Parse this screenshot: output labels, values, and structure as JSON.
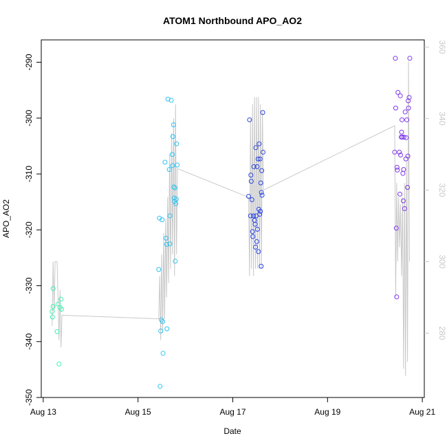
{
  "chart_data": {
    "type": "scatter",
    "title": "ATOM1 Northbound APO_AO2",
    "xlabel": "Date",
    "ylabel": "APO_AO2",
    "x_ticks": [
      "Aug 13",
      "Aug 15",
      "Aug 17",
      "Aug 19",
      "Aug 21"
    ],
    "xlim": [
      "2024-08-12T23:00",
      "2024-08-21T01:00"
    ],
    "ylim": [
      -350,
      -286
    ],
    "y_ticks": [
      -350,
      -340,
      -330,
      -320,
      -310,
      -300,
      -290
    ],
    "y2lim": [
      262,
      362
    ],
    "y2_ticks": [
      280,
      300,
      320,
      340,
      360
    ],
    "grid": false,
    "series": [
      {
        "color": "#3ef0b0",
        "points": [
          {
            "x": "2024-08-13T04:30",
            "y": -334.6
          },
          {
            "x": "2024-08-13T04:40",
            "y": -335.6
          },
          {
            "x": "2024-08-13T05:00",
            "y": -330.5
          },
          {
            "x": "2024-08-13T05:00",
            "y": -333.7
          },
          {
            "x": "2024-08-13T07:00",
            "y": -338.2
          },
          {
            "x": "2024-08-13T07:30",
            "y": -333.3
          },
          {
            "x": "2024-08-13T08:00",
            "y": -344.0
          },
          {
            "x": "2024-08-13T08:30",
            "y": -333.9
          },
          {
            "x": "2024-08-13T09:00",
            "y": -332.4
          },
          {
            "x": "2024-08-13T09:15",
            "y": -334.2
          }
        ]
      },
      {
        "color": "#2ec3f0",
        "points": [
          {
            "x": "2024-08-15T10:30",
            "y": -327.1
          },
          {
            "x": "2024-08-15T10:50",
            "y": -317.9
          },
          {
            "x": "2024-08-15T11:10",
            "y": -348.0
          },
          {
            "x": "2024-08-15T11:30",
            "y": -338.1
          },
          {
            "x": "2024-08-15T11:50",
            "y": -336.1
          },
          {
            "x": "2024-08-15T12:10",
            "y": -318.2
          },
          {
            "x": "2024-08-15T12:30",
            "y": -336.4
          },
          {
            "x": "2024-08-15T12:40",
            "y": -342.1
          },
          {
            "x": "2024-08-15T13:40",
            "y": -307.9
          },
          {
            "x": "2024-08-15T14:10",
            "y": -321.5
          },
          {
            "x": "2024-08-15T14:30",
            "y": -322.6
          },
          {
            "x": "2024-08-15T14:40",
            "y": -337.7
          },
          {
            "x": "2024-08-15T15:10",
            "y": -296.6
          },
          {
            "x": "2024-08-15T15:50",
            "y": -309.2
          },
          {
            "x": "2024-08-15T16:10",
            "y": -322.5
          },
          {
            "x": "2024-08-15T16:10",
            "y": -317.5
          },
          {
            "x": "2024-08-15T16:50",
            "y": -296.8
          },
          {
            "x": "2024-08-15T17:20",
            "y": -306.5
          },
          {
            "x": "2024-08-15T17:30",
            "y": -308.5
          },
          {
            "x": "2024-08-15T17:40",
            "y": -303.3
          },
          {
            "x": "2024-08-15T18:00",
            "y": -301.2
          },
          {
            "x": "2024-08-15T18:10",
            "y": -312.3
          },
          {
            "x": "2024-08-15T18:20",
            "y": -314.3
          },
          {
            "x": "2024-08-15T18:30",
            "y": -314.9
          },
          {
            "x": "2024-08-15T18:40",
            "y": -312.5
          },
          {
            "x": "2024-08-15T18:50",
            "y": -325.6
          },
          {
            "x": "2024-08-15T19:10",
            "y": -315.3
          },
          {
            "x": "2024-08-15T19:20",
            "y": -314.5
          },
          {
            "x": "2024-08-15T19:30",
            "y": -304.6
          },
          {
            "x": "2024-08-15T19:50",
            "y": -308.4
          }
        ]
      },
      {
        "color": "#2b46e0",
        "points": [
          {
            "x": "2024-08-17T08:00",
            "y": -314.0
          },
          {
            "x": "2024-08-17T08:30",
            "y": -300.3
          },
          {
            "x": "2024-08-17T09:00",
            "y": -317.5
          },
          {
            "x": "2024-08-17T09:10",
            "y": -310.2
          },
          {
            "x": "2024-08-17T09:20",
            "y": -311.3
          },
          {
            "x": "2024-08-17T09:40",
            "y": -314.6
          },
          {
            "x": "2024-08-17T10:00",
            "y": -320.3
          },
          {
            "x": "2024-08-17T10:10",
            "y": -321.2
          },
          {
            "x": "2024-08-17T10:30",
            "y": -317.5
          },
          {
            "x": "2024-08-17T10:40",
            "y": -308.7
          },
          {
            "x": "2024-08-17T11:00",
            "y": -318.3
          },
          {
            "x": "2024-08-17T11:20",
            "y": -319.0
          },
          {
            "x": "2024-08-17T11:30",
            "y": -323.1
          },
          {
            "x": "2024-08-17T11:40",
            "y": -305.3
          },
          {
            "x": "2024-08-17T11:50",
            "y": -317.5
          },
          {
            "x": "2024-08-17T12:10",
            "y": -322.1
          },
          {
            "x": "2024-08-17T12:20",
            "y": -308.7
          },
          {
            "x": "2024-08-17T12:30",
            "y": -319.9
          },
          {
            "x": "2024-08-17T12:50",
            "y": -307.3
          },
          {
            "x": "2024-08-17T13:00",
            "y": -323.9
          },
          {
            "x": "2024-08-17T13:10",
            "y": -316.3
          },
          {
            "x": "2024-08-17T13:20",
            "y": -304.6
          },
          {
            "x": "2024-08-17T13:40",
            "y": -317.2
          },
          {
            "x": "2024-08-17T13:50",
            "y": -307.3
          },
          {
            "x": "2024-08-17T14:00",
            "y": -316.7
          },
          {
            "x": "2024-08-17T14:10",
            "y": -311.6
          },
          {
            "x": "2024-08-17T14:20",
            "y": -326.5
          },
          {
            "x": "2024-08-17T14:30",
            "y": -313.3
          },
          {
            "x": "2024-08-17T14:40",
            "y": -309.4
          },
          {
            "x": "2024-08-17T14:50",
            "y": -313.8
          },
          {
            "x": "2024-08-17T15:10",
            "y": -299.0
          },
          {
            "x": "2024-08-17T15:20",
            "y": -306.1
          }
        ]
      },
      {
        "color": "#7c35e8",
        "points": [
          {
            "x": "2024-08-20T10:00",
            "y": -306.1
          },
          {
            "x": "2024-08-20T10:20",
            "y": -289.3
          },
          {
            "x": "2024-08-20T10:30",
            "y": -298.2
          },
          {
            "x": "2024-08-20T10:50",
            "y": -319.7
          },
          {
            "x": "2024-08-20T11:00",
            "y": -332.0
          },
          {
            "x": "2024-08-20T11:10",
            "y": -308.8
          },
          {
            "x": "2024-08-20T11:20",
            "y": -309.3
          },
          {
            "x": "2024-08-20T11:40",
            "y": -295.4
          },
          {
            "x": "2024-08-20T12:20",
            "y": -306.1
          },
          {
            "x": "2024-08-20T12:40",
            "y": -313.6
          },
          {
            "x": "2024-08-20T12:50",
            "y": -296.0
          },
          {
            "x": "2024-08-20T13:00",
            "y": -306.6
          },
          {
            "x": "2024-08-20T13:20",
            "y": -303.4
          },
          {
            "x": "2024-08-20T13:30",
            "y": -302.5
          },
          {
            "x": "2024-08-20T13:40",
            "y": -300.3
          },
          {
            "x": "2024-08-20T13:50",
            "y": -303.4
          },
          {
            "x": "2024-08-20T14:10",
            "y": -309.9
          },
          {
            "x": "2024-08-20T14:20",
            "y": -314.8
          },
          {
            "x": "2024-08-20T14:30",
            "y": -309.2
          },
          {
            "x": "2024-08-20T14:40",
            "y": -303.4
          },
          {
            "x": "2024-08-20T15:00",
            "y": -316.2
          },
          {
            "x": "2024-08-20T15:20",
            "y": -298.9
          },
          {
            "x": "2024-08-20T15:40",
            "y": -307.3
          },
          {
            "x": "2024-08-20T15:50",
            "y": -303.5
          },
          {
            "x": "2024-08-20T16:10",
            "y": -300.3
          },
          {
            "x": "2024-08-20T16:30",
            "y": -312.4
          },
          {
            "x": "2024-08-20T16:40",
            "y": -306.8
          },
          {
            "x": "2024-08-20T16:50",
            "y": -296.9
          },
          {
            "x": "2024-08-20T17:00",
            "y": -298.2
          },
          {
            "x": "2024-08-20T17:20",
            "y": -296.3
          },
          {
            "x": "2024-08-20T17:40",
            "y": -289.3
          }
        ]
      }
    ],
    "secondary_line": {
      "color": "#c8c8c8",
      "points": [
        {
          "x": "2024-08-13T04:30",
          "y2": 282
        },
        {
          "x": "2024-08-13T05:00",
          "y2": 300
        },
        {
          "x": "2024-08-13T05:30",
          "y2": 286
        },
        {
          "x": "2024-08-13T06:00",
          "y2": 300
        },
        {
          "x": "2024-08-13T07:00",
          "y2": 300
        },
        {
          "x": "2024-08-13T07:30",
          "y2": 290
        },
        {
          "x": "2024-08-13T08:00",
          "y2": 278
        },
        {
          "x": "2024-08-13T08:30",
          "y2": 292
        },
        {
          "x": "2024-08-13T09:00",
          "y2": 276
        },
        {
          "x": "2024-08-13T09:30",
          "y2": 285
        },
        {
          "x": "2024-08-15T10:30",
          "y2": 284
        },
        {
          "x": "2024-08-15T11:00",
          "y2": 296
        },
        {
          "x": "2024-08-15T11:30",
          "y2": 278
        },
        {
          "x": "2024-08-15T12:00",
          "y2": 302
        },
        {
          "x": "2024-08-15T12:30",
          "y2": 280
        },
        {
          "x": "2024-08-15T13:00",
          "y2": 308
        },
        {
          "x": "2024-08-15T13:30",
          "y2": 284
        },
        {
          "x": "2024-08-15T14:00",
          "y2": 312
        },
        {
          "x": "2024-08-15T14:30",
          "y2": 290
        },
        {
          "x": "2024-08-15T15:00",
          "y2": 318
        },
        {
          "x": "2024-08-15T15:30",
          "y2": 294
        },
        {
          "x": "2024-08-15T16:00",
          "y2": 330
        },
        {
          "x": "2024-08-15T16:30",
          "y2": 298
        },
        {
          "x": "2024-08-15T17:00",
          "y2": 336
        },
        {
          "x": "2024-08-15T17:30",
          "y2": 302
        },
        {
          "x": "2024-08-15T18:00",
          "y2": 340
        },
        {
          "x": "2024-08-15T18:30",
          "y2": 296
        },
        {
          "x": "2024-08-15T19:00",
          "y2": 344
        },
        {
          "x": "2024-08-15T19:30",
          "y2": 302
        },
        {
          "x": "2024-08-15T20:00",
          "y2": 326
        },
        {
          "x": "2024-08-17T08:00",
          "y2": 318
        },
        {
          "x": "2024-08-17T08:30",
          "y2": 296
        },
        {
          "x": "2024-08-17T09:00",
          "y2": 340
        },
        {
          "x": "2024-08-17T09:30",
          "y2": 298
        },
        {
          "x": "2024-08-17T10:00",
          "y2": 344
        },
        {
          "x": "2024-08-17T10:30",
          "y2": 296
        },
        {
          "x": "2024-08-17T11:00",
          "y2": 346
        },
        {
          "x": "2024-08-17T11:30",
          "y2": 298
        },
        {
          "x": "2024-08-17T12:00",
          "y2": 346
        },
        {
          "x": "2024-08-17T12:30",
          "y2": 298
        },
        {
          "x": "2024-08-17T13:00",
          "y2": 346
        },
        {
          "x": "2024-08-17T13:30",
          "y2": 298
        },
        {
          "x": "2024-08-17T14:00",
          "y2": 344
        },
        {
          "x": "2024-08-17T14:30",
          "y2": 298
        },
        {
          "x": "2024-08-17T15:00",
          "y2": 342
        },
        {
          "x": "2024-08-17T15:30",
          "y2": 320
        },
        {
          "x": "2024-08-20T10:00",
          "y2": 338
        },
        {
          "x": "2024-08-20T10:30",
          "y2": 290
        },
        {
          "x": "2024-08-20T11:00",
          "y2": 322
        },
        {
          "x": "2024-08-20T11:30",
          "y2": 300
        },
        {
          "x": "2024-08-20T12:00",
          "y2": 318
        },
        {
          "x": "2024-08-20T12:30",
          "y2": 304
        },
        {
          "x": "2024-08-20T13:00",
          "y2": 316
        },
        {
          "x": "2024-08-20T13:30",
          "y2": 296
        },
        {
          "x": "2024-08-20T14:00",
          "y2": 318
        },
        {
          "x": "2024-08-20T14:30",
          "y2": 270
        },
        {
          "x": "2024-08-20T15:00",
          "y2": 322
        },
        {
          "x": "2024-08-20T15:30",
          "y2": 268
        },
        {
          "x": "2024-08-20T16:00",
          "y2": 328
        },
        {
          "x": "2024-08-20T16:30",
          "y2": 272
        },
        {
          "x": "2024-08-20T17:00",
          "y2": 356
        },
        {
          "x": "2024-08-20T17:30",
          "y2": 300
        }
      ]
    }
  }
}
